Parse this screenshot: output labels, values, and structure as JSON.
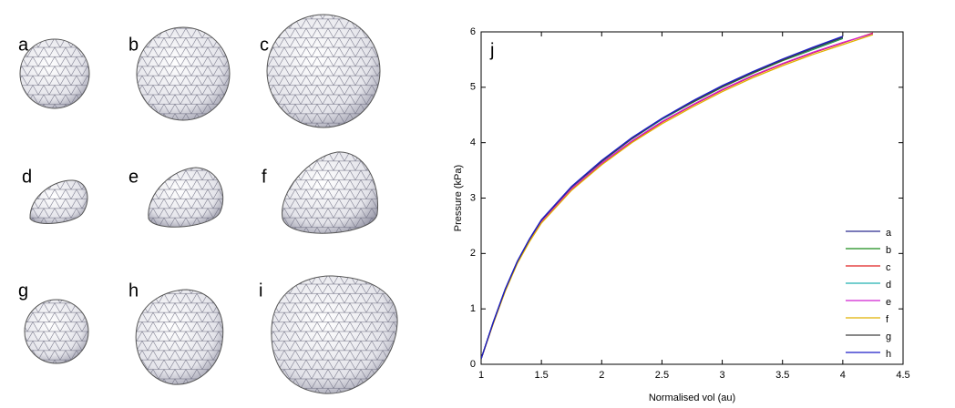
{
  "panels": [
    "a",
    "b",
    "c",
    "d",
    "e",
    "f",
    "g",
    "h",
    "i"
  ],
  "chart_data": {
    "type": "line",
    "annotation": "j",
    "xlabel": "Normalised vol (au)",
    "ylabel": "Pressure (kPa)",
    "xlim": [
      1,
      4.5
    ],
    "xticks": [
      1,
      1.5,
      2,
      2.5,
      3,
      3.5,
      4,
      4.5
    ],
    "ylim": [
      0,
      6
    ],
    "yticks": [
      0,
      1,
      2,
      3,
      4,
      5,
      6
    ],
    "legend": "lower right",
    "x": [
      1,
      1.1,
      1.2,
      1.3,
      1.4,
      1.5,
      1.75,
      2,
      2.25,
      2.5,
      2.75,
      3,
      3.25,
      3.5,
      3.75,
      4,
      4.25
    ],
    "series": [
      {
        "name": "a",
        "color": "#2b2b8f",
        "values": [
          0.1,
          0.75,
          1.35,
          1.85,
          2.25,
          2.6,
          3.2,
          3.67,
          4.08,
          4.43,
          4.74,
          5.02,
          5.27,
          5.5,
          5.7,
          5.9,
          null
        ]
      },
      {
        "name": "b",
        "color": "#1a8c1a",
        "values": [
          0.1,
          0.75,
          1.35,
          1.85,
          2.25,
          2.6,
          3.2,
          3.66,
          4.07,
          4.42,
          4.72,
          5.0,
          5.25,
          5.48,
          5.68,
          5.88,
          null
        ]
      },
      {
        "name": "c",
        "color": "#e02020",
        "values": [
          0.1,
          0.74,
          1.33,
          1.83,
          2.22,
          2.57,
          3.16,
          3.62,
          4.02,
          4.37,
          4.67,
          4.95,
          5.2,
          5.42,
          5.62,
          5.8,
          5.98
        ]
      },
      {
        "name": "d",
        "color": "#20b0b0",
        "values": [
          0.1,
          0.75,
          1.35,
          1.85,
          2.25,
          2.6,
          3.2,
          3.66,
          4.07,
          4.42,
          4.73,
          5.01,
          5.26,
          5.49,
          5.69,
          5.89,
          null
        ]
      },
      {
        "name": "e",
        "color": "#d020d0",
        "values": [
          0.1,
          0.74,
          1.34,
          1.84,
          2.23,
          2.58,
          3.17,
          3.63,
          4.03,
          4.38,
          4.68,
          4.96,
          5.21,
          5.43,
          5.63,
          5.81,
          5.97
        ]
      },
      {
        "name": "f",
        "color": "#e0b000",
        "values": [
          0.1,
          0.73,
          1.32,
          1.82,
          2.21,
          2.55,
          3.14,
          3.6,
          4.0,
          4.34,
          4.64,
          4.92,
          5.17,
          5.39,
          5.59,
          5.77,
          5.95
        ]
      },
      {
        "name": "g",
        "color": "#404040",
        "values": [
          0.1,
          0.75,
          1.35,
          1.85,
          2.25,
          2.6,
          3.2,
          3.66,
          4.07,
          4.43,
          4.73,
          5.01,
          5.26,
          5.49,
          5.7,
          5.9,
          null
        ]
      },
      {
        "name": "h",
        "color": "#1c1cc8",
        "values": [
          0.1,
          0.76,
          1.36,
          1.86,
          2.26,
          2.61,
          3.21,
          3.68,
          4.09,
          4.44,
          4.75,
          5.03,
          5.28,
          5.51,
          5.72,
          5.92,
          null
        ]
      }
    ]
  }
}
